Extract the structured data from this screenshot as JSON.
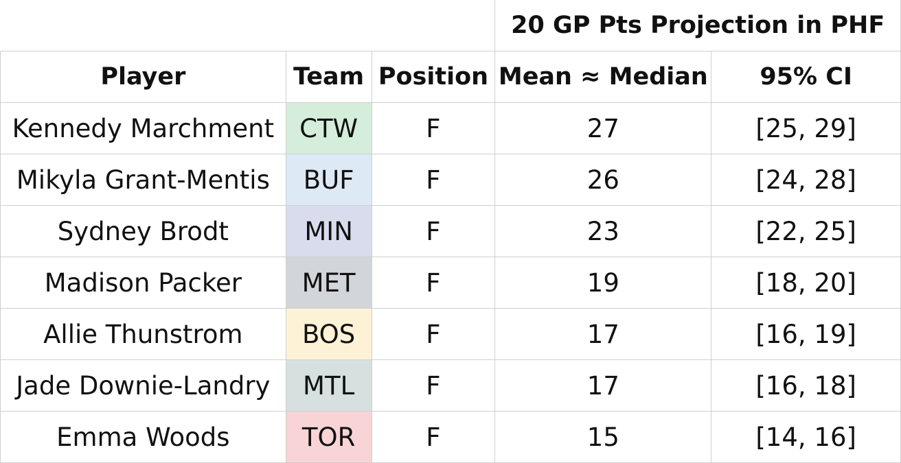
{
  "table": {
    "group_header": "20 GP Pts Projection in PHF",
    "columns": [
      "Player",
      "Team",
      "Position",
      "Mean ≈ Median",
      "95% CI"
    ],
    "team_colors": {
      "CTW": "#d4eedb",
      "BUF": "#dde9f5",
      "MIN": "#d8dced",
      "MET": "#d2d5da",
      "BOS": "#fdf2d6",
      "MTL": "#d6e1df",
      "TOR": "#f9d4d6"
    },
    "rows": [
      {
        "player": "Kennedy Marchment",
        "team": "CTW",
        "position": "F",
        "mean": "27",
        "ci": "[25, 29]"
      },
      {
        "player": "Mikyla Grant-Mentis",
        "team": "BUF",
        "position": "F",
        "mean": "26",
        "ci": "[24, 28]"
      },
      {
        "player": "Sydney Brodt",
        "team": "MIN",
        "position": "F",
        "mean": "23",
        "ci": "[22, 25]"
      },
      {
        "player": "Madison Packer",
        "team": "MET",
        "position": "F",
        "mean": "19",
        "ci": "[18, 20]"
      },
      {
        "player": "Allie Thunstrom",
        "team": "BOS",
        "position": "F",
        "mean": "17",
        "ci": "[16, 19]"
      },
      {
        "player": "Jade Downie-Landry",
        "team": "MTL",
        "position": "F",
        "mean": "17",
        "ci": "[16, 18]"
      },
      {
        "player": "Emma Woods",
        "team": "TOR",
        "position": "F",
        "mean": "15",
        "ci": "[14, 16]"
      }
    ]
  }
}
